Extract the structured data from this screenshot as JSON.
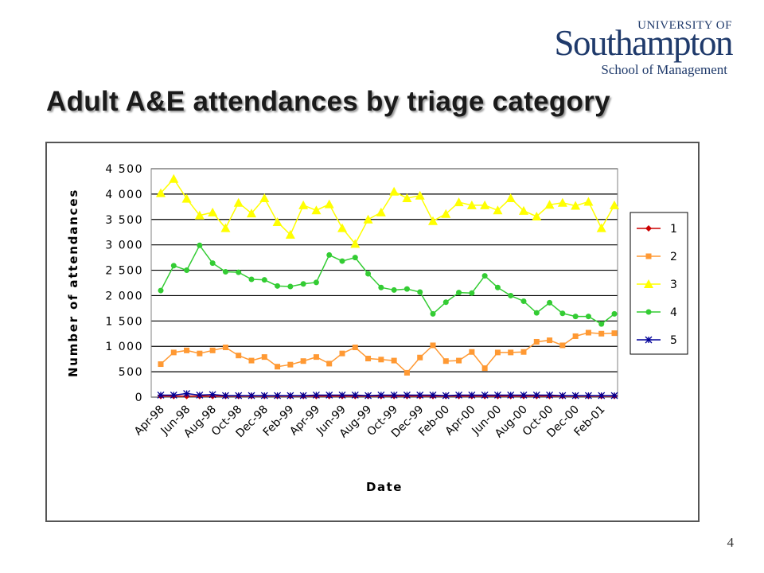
{
  "logo": {
    "line1": "UNIVERSITY OF",
    "line2": "Southampton",
    "line3": "School of Management"
  },
  "slide": {
    "title": "Adult A&E attendances by triage category",
    "page_number": "4"
  },
  "colors": {
    "series_1": "#cc0000",
    "series_2": "#ff9933",
    "series_3": "#ffff00",
    "series_4": "#33cc33",
    "series_5": "#000099",
    "gridline": "#000000"
  },
  "chart_data": {
    "type": "line",
    "title": "",
    "xlabel": "Date",
    "ylabel": "Number of attendances",
    "ylim": [
      0,
      4500
    ],
    "yticks": [
      "0",
      "500",
      "1000",
      "1500",
      "2000",
      "2500",
      "3000",
      "3500",
      "4000",
      "4500"
    ],
    "grid": true,
    "legend_position": "right",
    "x": [
      "Apr-98",
      "May-98",
      "Jun-98",
      "Jul-98",
      "Aug-98",
      "Sep-98",
      "Oct-98",
      "Nov-98",
      "Dec-98",
      "Jan-99",
      "Feb-99",
      "Mar-99",
      "Apr-99",
      "May-99",
      "Jun-99",
      "Jul-99",
      "Aug-99",
      "Sep-99",
      "Oct-99",
      "Nov-99",
      "Dec-99",
      "Jan-00",
      "Feb-00",
      "Mar-00",
      "Apr-00",
      "May-00",
      "Jun-00",
      "Jul-00",
      "Aug-00",
      "Sep-00",
      "Oct-00",
      "Nov-00",
      "Dec-00",
      "Jan-01",
      "Feb-01",
      "Mar-01"
    ],
    "xtick_labels": [
      "Apr-98",
      "Jun-98",
      "Aug-98",
      "Oct-98",
      "Dec-98",
      "Feb-99",
      "Apr-99",
      "Jun-99",
      "Aug-99",
      "Oct-99",
      "Dec-99",
      "Feb-00",
      "Apr-00",
      "Jun-00",
      "Aug-00",
      "Oct-00",
      "Dec-00",
      "Feb-01"
    ],
    "series": [
      {
        "name": "1",
        "marker": "diamond",
        "values": [
          20,
          20,
          20,
          20,
          20,
          20,
          20,
          20,
          20,
          20,
          20,
          20,
          20,
          20,
          20,
          20,
          20,
          20,
          20,
          20,
          20,
          20,
          20,
          20,
          20,
          20,
          20,
          20,
          20,
          20,
          20,
          20,
          20,
          20,
          20,
          20
        ]
      },
      {
        "name": "2",
        "marker": "square",
        "values": [
          650,
          880,
          920,
          860,
          920,
          980,
          820,
          720,
          790,
          600,
          640,
          710,
          790,
          660,
          860,
          980,
          760,
          740,
          720,
          480,
          780,
          1020,
          710,
          720,
          890,
          570,
          880,
          880,
          890,
          1090,
          1120,
          1020,
          1200,
          1270,
          1250,
          1260
        ]
      },
      {
        "name": "3",
        "marker": "triangle",
        "values": [
          4020,
          4300,
          3910,
          3580,
          3640,
          3330,
          3830,
          3620,
          3920,
          3450,
          3200,
          3780,
          3680,
          3800,
          3330,
          3020,
          3500,
          3640,
          4050,
          3920,
          3970,
          3470,
          3610,
          3840,
          3780,
          3780,
          3680,
          3920,
          3670,
          3560,
          3790,
          3830,
          3770,
          3850,
          3330,
          3780
        ]
      },
      {
        "name": "4",
        "marker": "circle",
        "values": [
          2100,
          2590,
          2500,
          2990,
          2640,
          2470,
          2460,
          2320,
          2310,
          2190,
          2180,
          2230,
          2260,
          2800,
          2680,
          2750,
          2430,
          2160,
          2110,
          2130,
          2070,
          1640,
          1870,
          2060,
          2050,
          2390,
          2160,
          2000,
          1890,
          1660,
          1860,
          1650,
          1590,
          1590,
          1440,
          1640
        ]
      },
      {
        "name": "5",
        "marker": "asterisk",
        "values": [
          40,
          40,
          70,
          40,
          50,
          30,
          30,
          30,
          30,
          30,
          30,
          30,
          40,
          40,
          40,
          40,
          30,
          40,
          40,
          40,
          40,
          40,
          30,
          40,
          40,
          40,
          40,
          40,
          40,
          40,
          40,
          30,
          30,
          30,
          30,
          30
        ]
      }
    ]
  }
}
